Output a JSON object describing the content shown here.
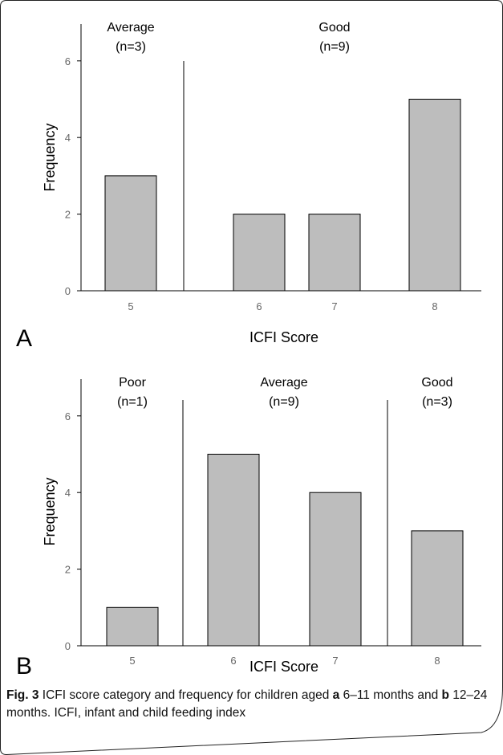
{
  "caption": {
    "fig_label": "Fig. 3",
    "part1": " ICFI score category and frequency for children aged ",
    "a_letter": "a",
    "part2": " 6–11 months and ",
    "b_letter": "b",
    "part3": " 12–24 months. ICFI, infant and child feeding index"
  },
  "chart_data": [
    {
      "type": "bar",
      "panel": "A",
      "categories": [
        "5",
        "6",
        "7",
        "8"
      ],
      "values": [
        3,
        2,
        2,
        5
      ],
      "xlabel": "ICFI Score",
      "ylabel": "Frequency",
      "ylim": [
        0,
        7
      ],
      "yticks": [
        0,
        2,
        4,
        6
      ],
      "groups": [
        {
          "label": "Average",
          "count": "(n=3)"
        },
        {
          "label": "Good",
          "count": "(n=9)"
        }
      ],
      "dividers_after_category": [
        0
      ]
    },
    {
      "type": "bar",
      "panel": "B",
      "categories": [
        "5",
        "6",
        "7",
        "8"
      ],
      "values": [
        1,
        5,
        4,
        3
      ],
      "xlabel": "ICFI Score",
      "ylabel": "Frequency",
      "ylim": [
        0,
        7
      ],
      "yticks": [
        0,
        2,
        4,
        6
      ],
      "groups": [
        {
          "label": "Poor",
          "count": "(n=1)"
        },
        {
          "label": "Average",
          "count": "(n=9)"
        },
        {
          "label": "Good",
          "count": "(n=3)"
        }
      ],
      "dividers_after_category": [
        0,
        2
      ]
    }
  ]
}
